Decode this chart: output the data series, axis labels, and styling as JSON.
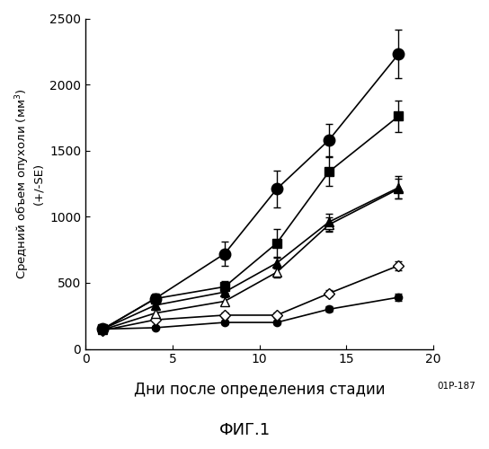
{
  "ylabel_line1": "Средний объем опухоли (мм$^3$)",
  "ylabel_line2": "(+/-SE)",
  "xlabel": "Дни после определения стадии",
  "xlabel_note": "01P-187",
  "fig_label": "ФИГ.1",
  "xlim": [
    0,
    20
  ],
  "ylim": [
    0,
    2500
  ],
  "xticks": [
    0,
    5,
    10,
    15,
    20
  ],
  "yticks": [
    0,
    500,
    1000,
    1500,
    2000,
    2500
  ],
  "series": [
    {
      "name": "small_circle_filled",
      "x": [
        1,
        4,
        8,
        11,
        14,
        18
      ],
      "y": [
        150,
        160,
        200,
        200,
        300,
        390
      ],
      "yerr": [
        10,
        10,
        15,
        15,
        20,
        25
      ],
      "marker": "o",
      "markersize": 6,
      "fillstyle": "full",
      "color": "#000000",
      "linewidth": 1.2
    },
    {
      "name": "diamond_open",
      "x": [
        1,
        4,
        8,
        11,
        14,
        18
      ],
      "y": [
        140,
        220,
        255,
        255,
        420,
        630
      ],
      "yerr": [
        10,
        15,
        20,
        20,
        25,
        35
      ],
      "marker": "D",
      "markersize": 6,
      "fillstyle": "none",
      "color": "#000000",
      "linewidth": 1.2
    },
    {
      "name": "triangle_open",
      "x": [
        1,
        4,
        8,
        11,
        14,
        18
      ],
      "y": [
        145,
        270,
        360,
        580,
        940,
        1210
      ],
      "yerr": [
        10,
        25,
        30,
        40,
        55,
        75
      ],
      "marker": "^",
      "markersize": 7,
      "fillstyle": "none",
      "color": "#000000",
      "linewidth": 1.2
    },
    {
      "name": "triangle_filled",
      "x": [
        1,
        4,
        8,
        11,
        14,
        18
      ],
      "y": [
        150,
        330,
        430,
        650,
        960,
        1220
      ],
      "yerr": [
        10,
        30,
        35,
        45,
        65,
        85
      ],
      "marker": "^",
      "markersize": 7,
      "fillstyle": "full",
      "color": "#000000",
      "linewidth": 1.2
    },
    {
      "name": "square_filled",
      "x": [
        1,
        4,
        8,
        11,
        14,
        18
      ],
      "y": [
        150,
        380,
        470,
        800,
        1340,
        1760
      ],
      "yerr": [
        10,
        35,
        45,
        110,
        110,
        120
      ],
      "marker": "s",
      "markersize": 7,
      "fillstyle": "full",
      "color": "#000000",
      "linewidth": 1.2
    },
    {
      "name": "circle_filled_large",
      "x": [
        1,
        4,
        8,
        11,
        14,
        18
      ],
      "y": [
        150,
        380,
        720,
        1210,
        1580,
        2230
      ],
      "yerr": [
        10,
        35,
        90,
        140,
        120,
        185
      ],
      "marker": "o",
      "markersize": 9,
      "fillstyle": "full",
      "color": "#000000",
      "linewidth": 1.2
    }
  ],
  "background_color": "#ffffff",
  "font_color": "#000000"
}
